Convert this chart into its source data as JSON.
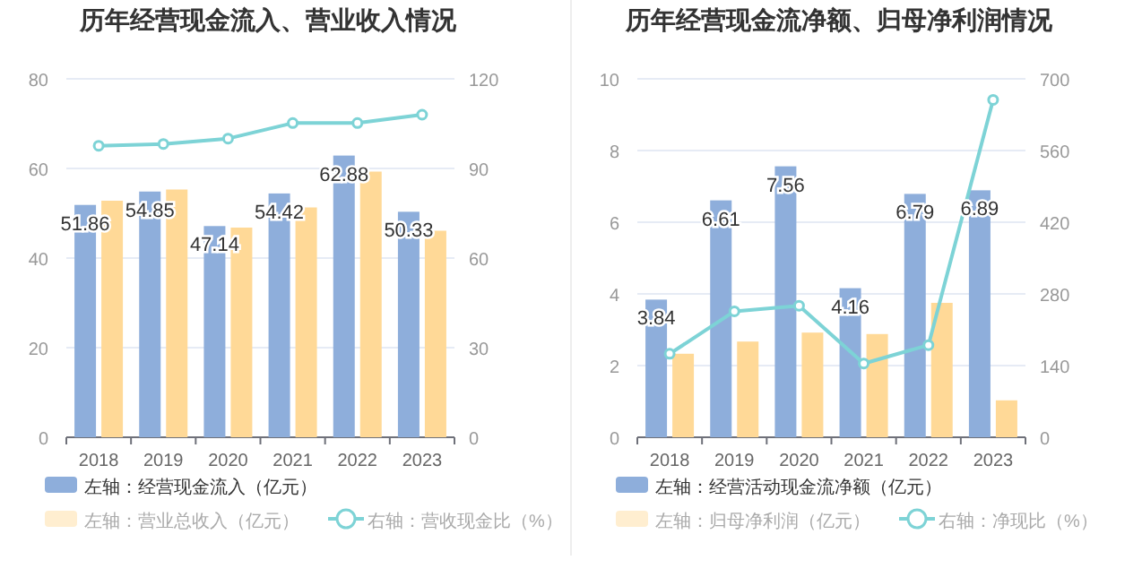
{
  "chart_data": [
    {
      "type": "bar",
      "title": "历年经营现金流入、营业收入情况",
      "categories": [
        "2018",
        "2019",
        "2020",
        "2021",
        "2022",
        "2023"
      ],
      "series": [
        {
          "name": "左轴：经营现金流入（亿元）",
          "color": "#8eaedb",
          "values": [
            51.86,
            54.85,
            47.14,
            54.42,
            62.88,
            50.33
          ],
          "value_labels": [
            "51.86",
            "54.85",
            "47.14",
            "54.42",
            "62.88",
            "50.33"
          ]
        },
        {
          "name": "左轴：营业总收入（亿元）",
          "color": "#ffd997",
          "values": [
            52.8,
            55.3,
            46.8,
            51.3,
            59.3,
            46.1
          ]
        },
        {
          "name": "右轴：营收现金比（%）",
          "type": "line",
          "axis": "y2",
          "marker": "circle",
          "color": "#7dd3d6",
          "values": [
            97.6,
            98.2,
            100,
            105.2,
            105.2,
            108
          ]
        }
      ],
      "ylim": [
        0,
        80
      ],
      "yticks": [
        0,
        20,
        40,
        60,
        80
      ],
      "y2lim": [
        0,
        120
      ],
      "y2ticks": [
        0,
        30,
        60,
        90,
        120
      ],
      "grid": "y",
      "legend": "bottom"
    },
    {
      "type": "bar",
      "title": "历年经营现金流净额、归母净利润情况",
      "categories": [
        "2018",
        "2019",
        "2020",
        "2021",
        "2022",
        "2023"
      ],
      "series": [
        {
          "name": "左轴：经营活动现金流净额（亿元）",
          "color": "#8eaedb",
          "values": [
            3.84,
            6.61,
            7.56,
            4.16,
            6.79,
            6.89
          ],
          "value_labels": [
            "3.84",
            "6.61",
            "7.56",
            "4.16",
            "6.79",
            "6.89"
          ]
        },
        {
          "name": "左轴：归母净利润（亿元）",
          "color": "#ffd997",
          "values": [
            2.33,
            2.67,
            2.92,
            2.88,
            3.75,
            1.03
          ]
        },
        {
          "name": "右轴：净现比（%）",
          "type": "line",
          "axis": "y2",
          "marker": "circle",
          "color": "#7dd3d6",
          "values": [
            163,
            246,
            257,
            144,
            180,
            659
          ]
        }
      ],
      "ylim": [
        0,
        10
      ],
      "yticks": [
        0,
        2,
        4,
        6,
        8,
        10
      ],
      "y2lim": [
        0,
        700
      ],
      "y2ticks": [
        0,
        140,
        280,
        420,
        560,
        700
      ],
      "grid": "y",
      "legend": "bottom"
    }
  ]
}
